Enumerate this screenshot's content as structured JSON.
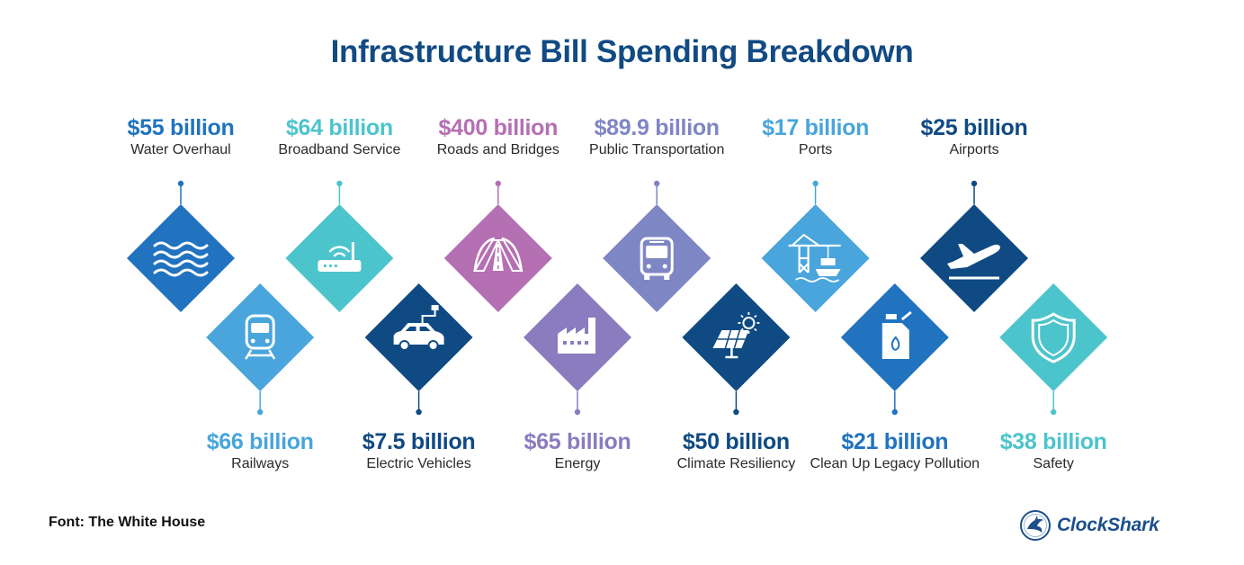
{
  "title": "Infrastructure Bill Spending Breakdown",
  "source": "Font: The White House",
  "logo": {
    "text": "ClockShark",
    "icon": "shark-logo-icon"
  },
  "items": [
    {
      "amount": "$55 billion",
      "label": "Water Overhaul",
      "row": "top",
      "color": "#2173bf",
      "icon": "water-waves-icon"
    },
    {
      "amount": "$66 billion",
      "label": "Railways",
      "row": "bottom",
      "color": "#49a5dc",
      "icon": "train-icon"
    },
    {
      "amount": "$64 billion",
      "label": "Broadband Service",
      "row": "top",
      "color": "#4cc4cc",
      "icon": "router-icon"
    },
    {
      "amount": "$7.5 billion",
      "label": "Electric Vehicles",
      "row": "bottom",
      "color": "#0f4a83",
      "icon": "electric-car-icon"
    },
    {
      "amount": "$400 billion",
      "label": "Roads and Bridges",
      "row": "top",
      "color": "#b56fb3",
      "icon": "road-bridge-icon"
    },
    {
      "amount": "$65 billion",
      "label": "Energy",
      "row": "bottom",
      "color": "#8a7cbf",
      "icon": "factory-icon"
    },
    {
      "amount": "$89.9 billion",
      "label": "Public Transportation",
      "row": "top",
      "color": "#7f86c4",
      "icon": "bus-icon"
    },
    {
      "amount": "$50 billion",
      "label": "Climate Resiliency",
      "row": "bottom",
      "color": "#0f4a83",
      "icon": "solar-panel-icon"
    },
    {
      "amount": "$17 billion",
      "label": "Ports",
      "row": "top",
      "color": "#49a5dc",
      "icon": "port-crane-icon"
    },
    {
      "amount": "$21 billion",
      "label": "Clean Up Legacy Pollution",
      "row": "bottom",
      "color": "#2173bf",
      "icon": "fuel-can-icon"
    },
    {
      "amount": "$25 billion",
      "label": "Airports",
      "row": "top",
      "color": "#0f4a83",
      "icon": "airplane-icon"
    },
    {
      "amount": "$38 billion",
      "label": "Safety",
      "row": "bottom",
      "color": "#4cc4cc",
      "icon": "shield-icon"
    }
  ]
}
